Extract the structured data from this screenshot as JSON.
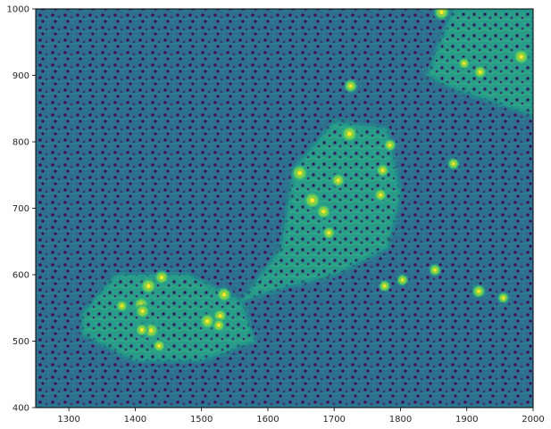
{
  "chart_data": {
    "type": "heatmap",
    "title": "",
    "xlabel": "",
    "ylabel": "",
    "xlim": [
      1250,
      2000
    ],
    "ylim": [
      400,
      1000
    ],
    "x_ticks": [
      1300,
      1400,
      1500,
      1600,
      1700,
      1800,
      1900,
      2000
    ],
    "y_ticks": [
      400,
      500,
      600,
      700,
      800,
      900,
      1000
    ],
    "colormap": "viridis",
    "colors": {
      "background": "#3b518b",
      "low": "#440154",
      "mid": "#21918c",
      "high": "#fde725",
      "bright": "#7ad151"
    },
    "grid": false,
    "sources": [
      {
        "x": 1667,
        "y": 712,
        "v": 1.0
      },
      {
        "x": 1648,
        "y": 753,
        "v": 0.95
      },
      {
        "x": 1723,
        "y": 812,
        "v": 0.95
      },
      {
        "x": 1862,
        "y": 995,
        "v": 0.85
      },
      {
        "x": 1982,
        "y": 928,
        "v": 0.85
      },
      {
        "x": 1420,
        "y": 583,
        "v": 0.9
      },
      {
        "x": 1509,
        "y": 530,
        "v": 0.85
      },
      {
        "x": 1424,
        "y": 516,
        "v": 0.85
      },
      {
        "x": 1409,
        "y": 555,
        "v": 0.8
      },
      {
        "x": 1411,
        "y": 545,
        "v": 0.75
      },
      {
        "x": 1534,
        "y": 570,
        "v": 0.75
      },
      {
        "x": 1440,
        "y": 596,
        "v": 0.7
      },
      {
        "x": 1528,
        "y": 538,
        "v": 0.7
      },
      {
        "x": 1526,
        "y": 524,
        "v": 0.6
      },
      {
        "x": 1410,
        "y": 517,
        "v": 0.6
      },
      {
        "x": 1436,
        "y": 493,
        "v": 0.55
      },
      {
        "x": 1380,
        "y": 553,
        "v": 0.5
      },
      {
        "x": 1684,
        "y": 695,
        "v": 0.75
      },
      {
        "x": 1706,
        "y": 742,
        "v": 0.7
      },
      {
        "x": 1692,
        "y": 663,
        "v": 0.6
      },
      {
        "x": 1770,
        "y": 720,
        "v": 0.6
      },
      {
        "x": 1773,
        "y": 757,
        "v": 0.6
      },
      {
        "x": 1784,
        "y": 795,
        "v": 0.55
      },
      {
        "x": 1920,
        "y": 905,
        "v": 0.6
      },
      {
        "x": 1918,
        "y": 575,
        "v": 0.6
      },
      {
        "x": 1852,
        "y": 607,
        "v": 0.5
      },
      {
        "x": 1803,
        "y": 592,
        "v": 0.45
      },
      {
        "x": 1776,
        "y": 583,
        "v": 0.45
      },
      {
        "x": 1725,
        "y": 884,
        "v": 0.6
      },
      {
        "x": 1880,
        "y": 767,
        "v": 0.45
      },
      {
        "x": 1955,
        "y": 565,
        "v": 0.4
      },
      {
        "x": 1896,
        "y": 918,
        "v": 0.45
      }
    ],
    "regions": [
      {
        "points": [
          [
            1320,
            540
          ],
          [
            1370,
            600
          ],
          [
            1480,
            600
          ],
          [
            1560,
            560
          ],
          [
            1580,
            500
          ],
          [
            1500,
            470
          ],
          [
            1400,
            470
          ],
          [
            1320,
            510
          ]
        ]
      },
      {
        "points": [
          [
            1560,
            560
          ],
          [
            1620,
            640
          ],
          [
            1640,
            760
          ],
          [
            1700,
            830
          ],
          [
            1780,
            820
          ],
          [
            1800,
            720
          ],
          [
            1780,
            640
          ],
          [
            1700,
            600
          ],
          [
            1620,
            580
          ]
        ]
      },
      {
        "points": [
          [
            1840,
            900
          ],
          [
            1880,
            1000
          ],
          [
            2000,
            1000
          ],
          [
            2000,
            840
          ],
          [
            1940,
            860
          ],
          [
            1880,
            880
          ]
        ]
      }
    ]
  }
}
